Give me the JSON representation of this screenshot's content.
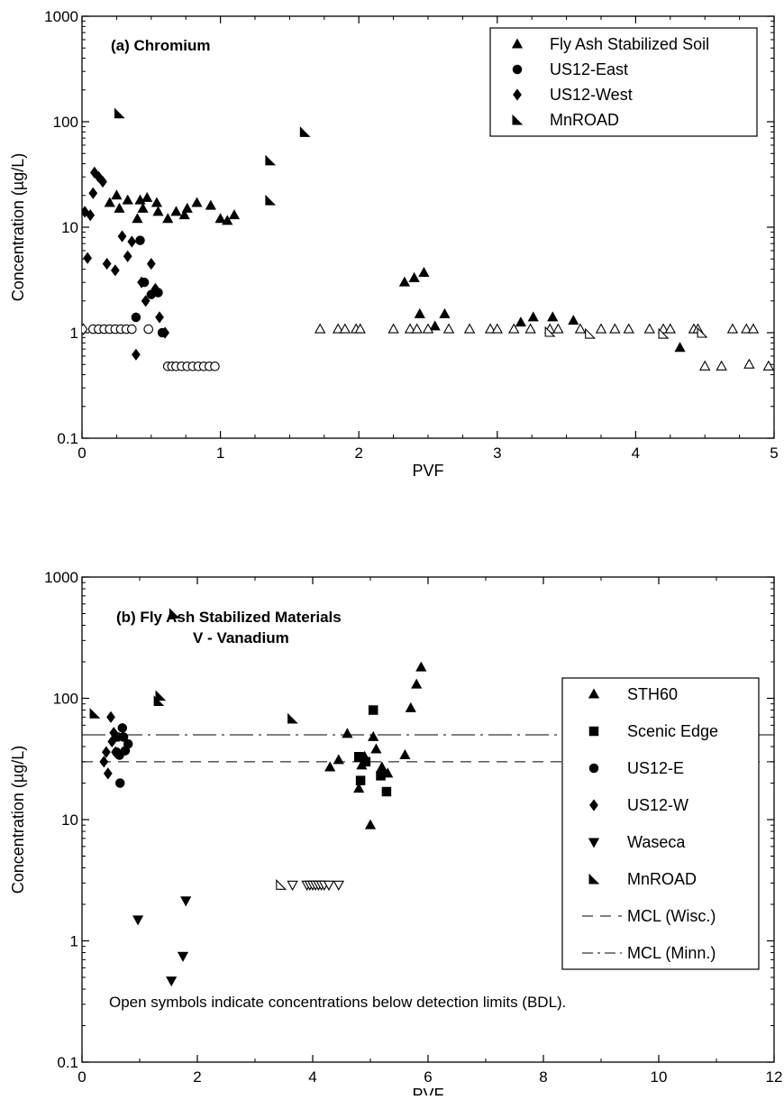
{
  "chart_data": [
    {
      "type": "scatter",
      "title": "(a) Chromium",
      "subtitle": "",
      "xlabel": "PVF",
      "ylabel": "Concentration (µg/L)",
      "xlim": [
        0,
        5
      ],
      "ylim": [
        0.1,
        1000
      ],
      "yscale": "log",
      "xticks": [
        "0",
        "1",
        "2",
        "3",
        "4",
        "5"
      ],
      "yticks": [
        "0.1",
        "1",
        "10",
        "100",
        "1000"
      ],
      "grid": false,
      "legend_position": "top-right",
      "note": "",
      "series": [
        {
          "name": "Fly Ash Stabilized Soil",
          "marker": "triangle-up",
          "filled": [
            [
              0.2,
              17
            ],
            [
              0.25,
              20
            ],
            [
              0.27,
              15
            ],
            [
              0.33,
              18
            ],
            [
              0.4,
              12
            ],
            [
              0.42,
              18
            ],
            [
              0.44,
              15
            ],
            [
              0.47,
              19
            ],
            [
              0.54,
              17
            ],
            [
              0.55,
              14
            ],
            [
              0.62,
              12
            ],
            [
              0.68,
              14
            ],
            [
              0.74,
              13
            ],
            [
              0.76,
              15
            ],
            [
              0.83,
              17
            ],
            [
              0.93,
              16
            ],
            [
              1.0,
              12
            ],
            [
              1.05,
              11.5
            ],
            [
              1.1,
              13
            ],
            [
              2.33,
              3.0
            ],
            [
              2.4,
              3.3
            ],
            [
              2.44,
              1.5
            ],
            [
              2.47,
              3.7
            ],
            [
              2.55,
              1.15
            ],
            [
              2.62,
              1.5
            ],
            [
              3.17,
              1.25
            ],
            [
              3.26,
              1.4
            ],
            [
              3.4,
              1.4
            ],
            [
              3.55,
              1.3
            ],
            [
              4.32,
              0.72
            ]
          ],
          "open": [
            [
              1.72,
              1.08
            ],
            [
              1.85,
              1.08
            ],
            [
              1.9,
              1.08
            ],
            [
              1.98,
              1.08
            ],
            [
              2.01,
              1.08
            ],
            [
              2.25,
              1.08
            ],
            [
              2.37,
              1.08
            ],
            [
              2.42,
              1.08
            ],
            [
              2.5,
              1.08
            ],
            [
              2.65,
              1.08
            ],
            [
              2.8,
              1.08
            ],
            [
              2.95,
              1.08
            ],
            [
              3.0,
              1.08
            ],
            [
              3.12,
              1.08
            ],
            [
              3.24,
              1.08
            ],
            [
              3.38,
              1.08
            ],
            [
              3.44,
              1.08
            ],
            [
              3.6,
              1.08
            ],
            [
              3.75,
              1.08
            ],
            [
              3.85,
              1.08
            ],
            [
              3.95,
              1.08
            ],
            [
              4.1,
              1.08
            ],
            [
              4.2,
              1.08
            ],
            [
              4.25,
              1.08
            ],
            [
              4.42,
              1.08
            ],
            [
              4.45,
              1.08
            ],
            [
              4.5,
              0.48
            ],
            [
              4.62,
              0.48
            ],
            [
              4.7,
              1.08
            ],
            [
              4.8,
              1.08
            ],
            [
              4.82,
              0.5
            ],
            [
              4.85,
              1.08
            ],
            [
              4.96,
              0.48
            ]
          ]
        },
        {
          "name": "US12-East",
          "marker": "circle",
          "filled": [
            [
              0.39,
              1.4
            ],
            [
              0.42,
              7.5
            ],
            [
              0.45,
              3.0
            ],
            [
              0.5,
              2.3
            ],
            [
              0.55,
              2.4
            ],
            [
              0.58,
              1.0
            ]
          ],
          "open": [
            [
              0.08,
              1.08
            ],
            [
              0.12,
              1.08
            ],
            [
              0.16,
              1.08
            ],
            [
              0.2,
              1.08
            ],
            [
              0.24,
              1.08
            ],
            [
              0.28,
              1.08
            ],
            [
              0.32,
              1.08
            ],
            [
              0.36,
              1.08
            ],
            [
              0.48,
              1.08
            ],
            [
              0.62,
              0.48
            ],
            [
              0.65,
              0.48
            ],
            [
              0.68,
              0.48
            ],
            [
              0.72,
              0.48
            ],
            [
              0.76,
              0.48
            ],
            [
              0.8,
              0.48
            ],
            [
              0.84,
              0.48
            ],
            [
              0.88,
              0.48
            ],
            [
              0.92,
              0.48
            ],
            [
              0.96,
              0.48
            ]
          ]
        },
        {
          "name": "US12-West",
          "marker": "diamond",
          "filled": [
            [
              0.02,
              14
            ],
            [
              0.04,
              5.1
            ],
            [
              0.06,
              13
            ],
            [
              0.08,
              21
            ],
            [
              0.09,
              33
            ],
            [
              0.12,
              30
            ],
            [
              0.15,
              27
            ],
            [
              0.18,
              4.5
            ],
            [
              0.24,
              3.9
            ],
            [
              0.29,
              8.2
            ],
            [
              0.33,
              5.3
            ],
            [
              0.36,
              7.3
            ],
            [
              0.39,
              0.62
            ],
            [
              0.43,
              3.0
            ],
            [
              0.46,
              2.0
            ],
            [
              0.5,
              4.5
            ],
            [
              0.53,
              2.6
            ],
            [
              0.56,
              1.4
            ],
            [
              0.6,
              1.0
            ]
          ],
          "open": [
            [
              0.01,
              1.08
            ]
          ]
        },
        {
          "name": "MnROAD",
          "marker": "right-triangle",
          "filled": [
            [
              0.27,
              120
            ],
            [
              1.36,
              43
            ],
            [
              1.36,
              18
            ],
            [
              1.61,
              80
            ]
          ],
          "open": [
            [
              3.38,
              1.02
            ],
            [
              3.67,
              0.98
            ],
            [
              4.2,
              0.98
            ],
            [
              4.48,
              1.0
            ]
          ]
        }
      ]
    },
    {
      "type": "scatter",
      "title": "(b) Fly Ash Stabilized Materials",
      "subtitle": "V - Vanadium",
      "xlabel": "PVF",
      "ylabel": "Concentration (µg/L)",
      "xlim": [
        0,
        12
      ],
      "ylim": [
        0.1,
        1000
      ],
      "yscale": "log",
      "xticks": [
        "0",
        "2",
        "4",
        "6",
        "8",
        "10",
        "12"
      ],
      "yticks": [
        "0.1",
        "1",
        "10",
        "100",
        "1000"
      ],
      "grid": false,
      "legend_position": "right",
      "note": "Open symbols indicate concentrations below detection limits (BDL).",
      "reference_lines": [
        {
          "name": "MCL (Wisc.)",
          "y": 30,
          "style": "dash"
        },
        {
          "name": "MCL (Minn.)",
          "y": 50,
          "style": "dash-dot"
        }
      ],
      "series": [
        {
          "name": "STH60",
          "marker": "triangle-up",
          "filled": [
            [
              4.3,
              27
            ],
            [
              4.45,
              31
            ],
            [
              4.6,
              51
            ],
            [
              4.8,
              18
            ],
            [
              4.85,
              28
            ],
            [
              4.9,
              33
            ],
            [
              5.0,
              9
            ],
            [
              5.05,
              48
            ],
            [
              5.1,
              38
            ],
            [
              5.2,
              27
            ],
            [
              5.3,
              24
            ],
            [
              5.6,
              34
            ],
            [
              5.7,
              83
            ],
            [
              5.8,
              130
            ],
            [
              5.88,
              180
            ]
          ],
          "open": []
        },
        {
          "name": "Scenic Edge",
          "marker": "square",
          "filled": [
            [
              4.8,
              33
            ],
            [
              4.83,
              21
            ],
            [
              4.92,
              30
            ],
            [
              5.05,
              80
            ],
            [
              5.18,
              23
            ],
            [
              5.28,
              17
            ]
          ],
          "open": []
        },
        {
          "name": "US12-E",
          "marker": "circle",
          "filled": [
            [
              0.6,
              36
            ],
            [
              0.62,
              48
            ],
            [
              0.65,
              34
            ],
            [
              0.66,
              20
            ],
            [
              0.7,
              57
            ],
            [
              0.72,
              48
            ],
            [
              0.75,
              37
            ],
            [
              0.8,
              42
            ]
          ],
          "open": []
        },
        {
          "name": "US12-W",
          "marker": "diamond",
          "filled": [
            [
              0.38,
              30
            ],
            [
              0.42,
              36
            ],
            [
              0.45,
              24
            ],
            [
              0.5,
              70
            ],
            [
              0.52,
              44
            ],
            [
              0.55,
              52
            ],
            [
              0.58,
              36
            ]
          ],
          "open": []
        },
        {
          "name": "Waseca",
          "marker": "triangle-down",
          "filled": [
            [
              0.97,
              1.5
            ],
            [
              1.55,
              0.47
            ],
            [
              1.75,
              0.75
            ],
            [
              1.8,
              2.15
            ]
          ],
          "open": [
            [
              3.65,
              2.9
            ],
            [
              3.9,
              2.9
            ],
            [
              3.95,
              2.9
            ],
            [
              4.0,
              2.9
            ],
            [
              4.05,
              2.9
            ],
            [
              4.1,
              2.9
            ],
            [
              4.15,
              2.9
            ],
            [
              4.2,
              2.9
            ],
            [
              4.28,
              2.9
            ],
            [
              4.45,
              2.9
            ]
          ]
        },
        {
          "name": "MnROAD",
          "marker": "right-triangle",
          "filled": [
            [
              0.22,
              75
            ],
            [
              1.33,
              95
            ],
            [
              1.36,
              105
            ],
            [
              1.6,
              500
            ],
            [
              3.65,
              68
            ]
          ],
          "open": [
            [
              3.45,
              2.9
            ]
          ]
        }
      ]
    }
  ]
}
